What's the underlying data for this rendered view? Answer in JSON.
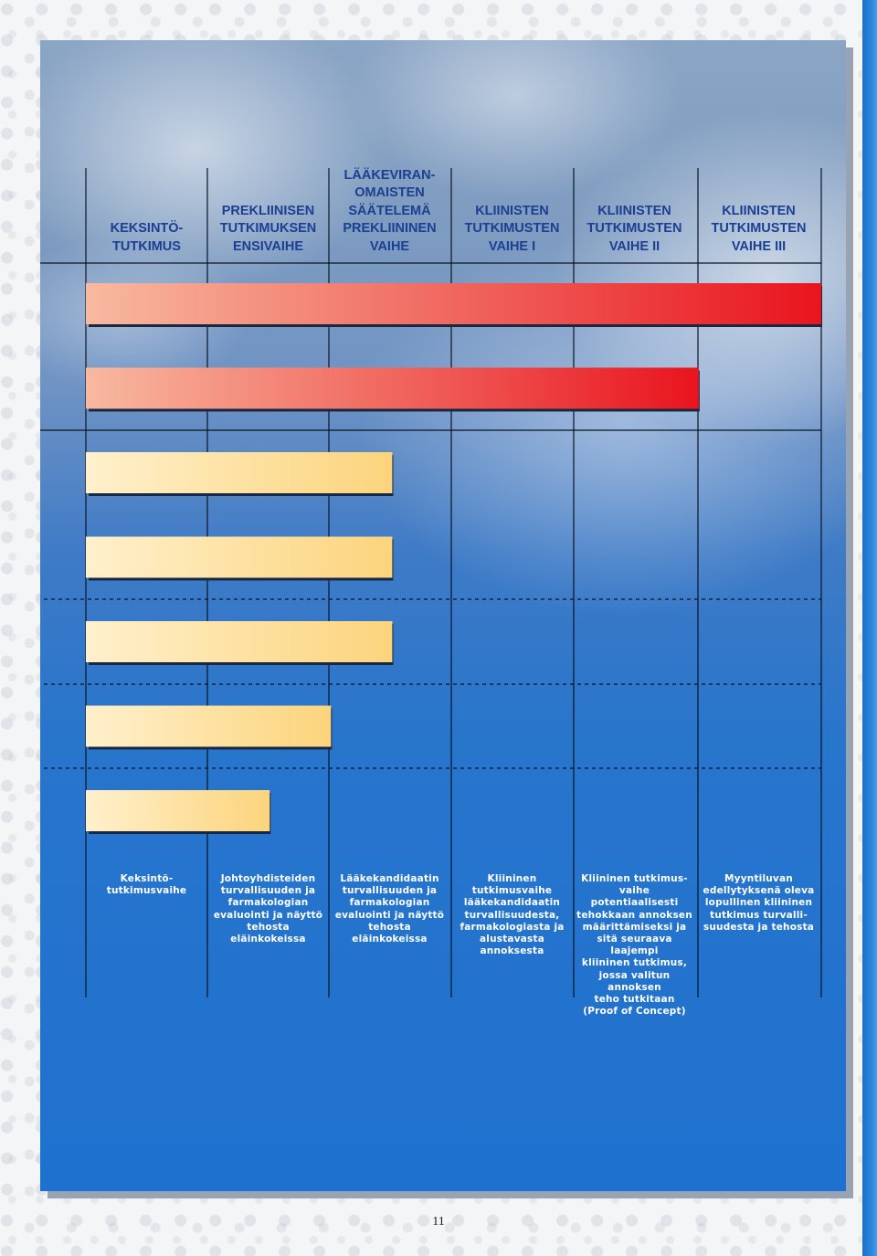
{
  "page": {
    "page_number": "11",
    "colors": {
      "header_text": "#1c3f92",
      "description_text": "#ffffff",
      "grid_line": "#0a1424",
      "red_bar_start": "#f8b9a0",
      "red_bar_end": "#e9141e",
      "yellow_bar_start": "#fff0cc",
      "yellow_bar_end": "#fcd47c"
    }
  },
  "chart_data": {
    "type": "bar",
    "orientation": "horizontal",
    "title": "",
    "xlabel": "",
    "ylabel": "",
    "grid": true,
    "legend": "none",
    "categories": [
      "KEKSINTÖ-\nTUTKIMUS",
      "PREKLIINISEN\nTUTKIMUKSEN\nENSIVAIHE",
      "LÄÄKEVIRAN-\nOMAISTEN\nSÄÄTELEMÄ\nPREKLIININEN\nVAIHE",
      "KLIINISTEN\nTUTKIMUSTEN\nVAIHE I",
      "KLIINISTEN\nTUTKIMUSTEN\nVAIHE II",
      "KLIINISTEN\nTUTKIMUSTEN\nVAIHE III"
    ],
    "descriptions": [
      "Keksintö-\ntutkimusvaihe",
      "Johtoyhdisteiden\nturvallisuuden ja\nfarmakologian\nevaluointi ja näyttö\ntehosta eläinkokeissa",
      "Lääkekandidaatin\nturvallisuuden ja\nfarmakologian\nevaluointi ja näyttö\ntehosta eläinkokeissa",
      "Kliininen\ntutkimusvaihe\nlääkekandidaatin\nturvallisuudesta,\nfarmakologiasta ja\nalustavasta\nannoksesta",
      "Kliininen tutkimus-\nvaihe potentiaalisesti\ntehokkaan annoksen\nmäärittämiseksi ja\nsitä seuraava laajempi\nkliininen tutkimus,\njossa valitun annoksen\nteho tutkitaan\n(Proof of Concept)",
      "Myyntiluvan\nedellytyksenä oleva\nlopullinen kliininen\ntutkimus turvalli-\nsuudesta ja tehosta"
    ],
    "xlim": [
      0,
      6
    ],
    "bars": [
      {
        "end": 6.0,
        "color": "red"
      },
      {
        "end": 5.0,
        "color": "red"
      },
      {
        "end": 2.5,
        "color": "yellow"
      },
      {
        "end": 2.5,
        "color": "yellow"
      },
      {
        "end": 2.5,
        "color": "yellow"
      },
      {
        "end": 2.0,
        "color": "yellow"
      },
      {
        "end": 1.5,
        "color": "yellow"
      }
    ]
  }
}
